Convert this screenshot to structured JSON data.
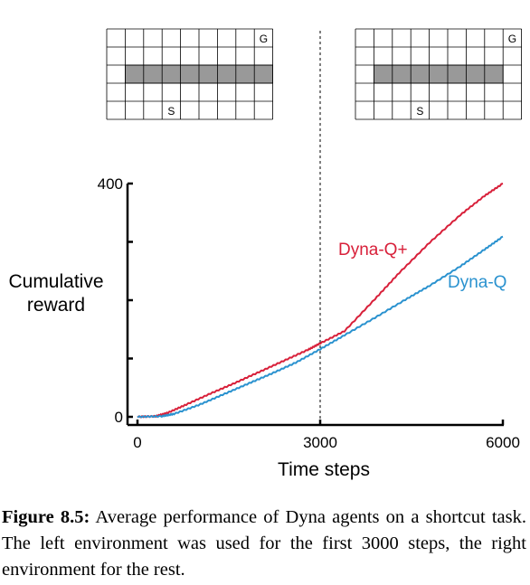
{
  "chart_data": {
    "type": "line",
    "ylabel_lines": [
      "Cumulative",
      "reward"
    ],
    "xlabel": "Time steps",
    "xlim": [
      0,
      6000
    ],
    "ylim": [
      0,
      400
    ],
    "x_ticks": [
      0,
      3000,
      6000
    ],
    "y_ticks": [
      0,
      100,
      200,
      300,
      400
    ],
    "x_tick_labels": [
      "0",
      "3000",
      "6000"
    ],
    "y_tick_labels": [
      "0",
      "400"
    ],
    "grid": false,
    "vline": {
      "x": 3000,
      "style": "dotted"
    },
    "series": [
      {
        "name": "Dyna-Q+",
        "color": "#d8203a",
        "x": [
          0,
          300,
          500,
          800,
          1200,
          1600,
          2000,
          2400,
          2800,
          3000,
          3400,
          3900,
          4300,
          4800,
          5300,
          5700,
          6000
        ],
        "y": [
          0,
          1,
          7,
          21,
          40,
          58,
          77,
          96,
          115,
          126,
          147,
          202,
          247,
          299,
          346,
          379,
          400
        ]
      },
      {
        "name": "Dyna-Q",
        "color": "#2a92cf",
        "x": [
          0,
          400,
          600,
          1000,
          1400,
          1800,
          2200,
          2600,
          3000,
          3400,
          3900,
          4400,
          4800,
          5300,
          5700,
          6000
        ],
        "y": [
          0,
          1,
          5,
          20,
          38,
          56,
          74,
          93,
          116,
          140,
          170,
          201,
          225,
          258,
          287,
          309
        ]
      }
    ]
  },
  "gridworlds": {
    "left": {
      "goal_label": "G",
      "start_label": "S"
    },
    "right": {
      "goal_label": "G",
      "start_label": "S"
    }
  },
  "colors": {
    "wall": "#999999",
    "axis": "#000000"
  },
  "caption": {
    "label": "Figure 8.5:",
    "text": "Average performance of Dyna agents on a shortcut task. The left environment was used for the first 3000 steps, the right environment for the rest."
  }
}
